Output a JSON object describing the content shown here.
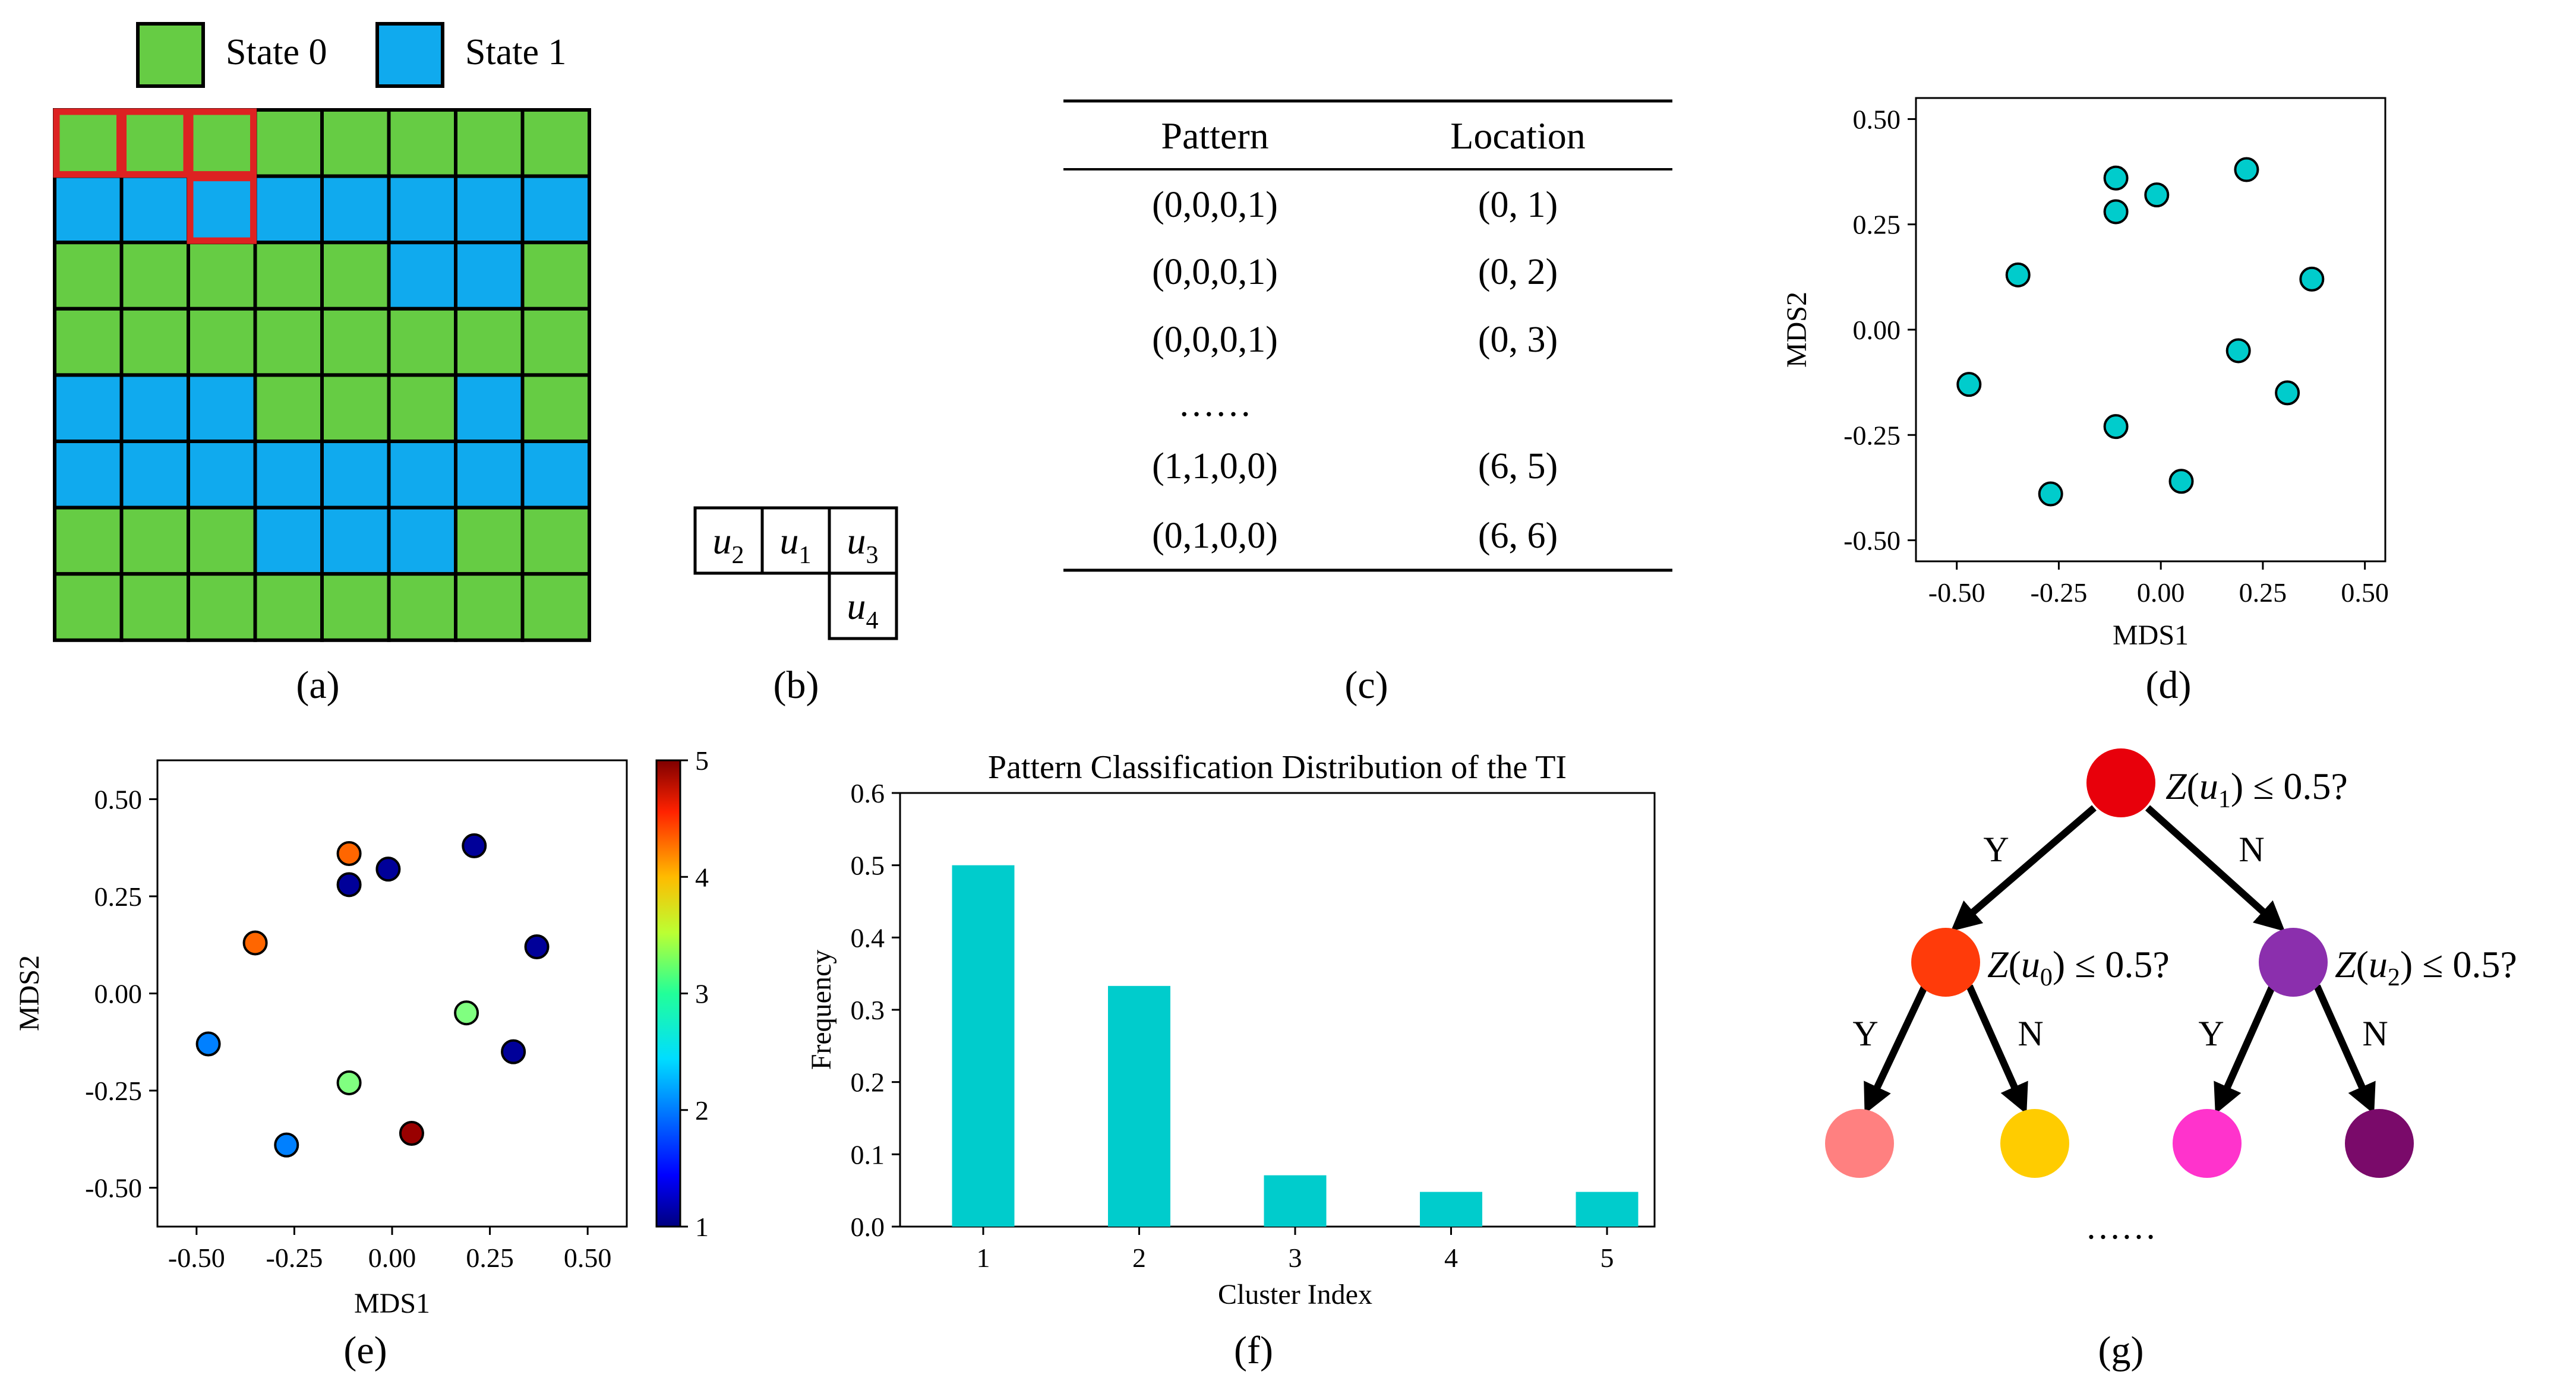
{
  "colors": {
    "state0": "#66CC44",
    "state1": "#10AAEE",
    "highlight": "#DD2222",
    "teal": "#00CCCC"
  },
  "panel_a": {
    "label": "(a)",
    "legend": [
      "State 0",
      "State 1"
    ],
    "grid": [
      [
        0,
        0,
        0,
        0,
        0,
        0,
        0,
        0
      ],
      [
        1,
        1,
        1,
        1,
        1,
        1,
        1,
        1
      ],
      [
        0,
        0,
        0,
        0,
        0,
        1,
        1,
        0
      ],
      [
        0,
        0,
        0,
        0,
        0,
        0,
        0,
        0
      ],
      [
        1,
        1,
        1,
        0,
        0,
        0,
        1,
        0
      ],
      [
        1,
        1,
        1,
        1,
        1,
        1,
        1,
        1
      ],
      [
        0,
        0,
        0,
        1,
        1,
        1,
        0,
        0
      ],
      [
        0,
        0,
        0,
        0,
        0,
        0,
        0,
        0
      ]
    ],
    "highlighted_cells": [
      [
        0,
        0
      ],
      [
        0,
        1
      ],
      [
        0,
        2
      ],
      [
        1,
        2
      ]
    ]
  },
  "panel_b": {
    "label": "(b)",
    "template": [
      "u2",
      "u1",
      "u3",
      "u4"
    ]
  },
  "panel_c": {
    "label": "(c)",
    "headers": [
      "Pattern",
      "Location"
    ],
    "rows": [
      [
        "(0,0,0,1)",
        "(0, 1)"
      ],
      [
        "(0,0,0,1)",
        "(0, 2)"
      ],
      [
        "(0,0,0,1)",
        "(0, 3)"
      ],
      [
        "……",
        ""
      ],
      [
        "(1,1,0,0)",
        "(6, 5)"
      ],
      [
        "(0,1,0,0)",
        "(6, 6)"
      ]
    ]
  },
  "chart_data": [
    {
      "panel": "(d)",
      "type": "scatter",
      "xlabel": "MDS1",
      "ylabel": "MDS2",
      "xlim": [
        -0.6,
        0.55
      ],
      "ylim": [
        -0.55,
        0.55
      ],
      "xticks": [
        "-0.50",
        "-0.25",
        "0.00",
        "0.25",
        "0.50"
      ],
      "yticks": [
        "0.50",
        "0.25",
        "0.00",
        "-0.25",
        "-0.50"
      ],
      "points": [
        {
          "x": -0.11,
          "y": 0.36
        },
        {
          "x": -0.11,
          "y": 0.28
        },
        {
          "x": -0.01,
          "y": 0.32
        },
        {
          "x": 0.21,
          "y": 0.38
        },
        {
          "x": -0.35,
          "y": 0.13
        },
        {
          "x": 0.37,
          "y": 0.12
        },
        {
          "x": 0.19,
          "y": -0.05
        },
        {
          "x": -0.47,
          "y": -0.13
        },
        {
          "x": 0.31,
          "y": -0.15
        },
        {
          "x": -0.11,
          "y": -0.23
        },
        {
          "x": 0.05,
          "y": -0.36
        },
        {
          "x": -0.27,
          "y": -0.39
        }
      ]
    },
    {
      "panel": "(e)",
      "type": "scatter",
      "xlabel": "MDS1",
      "ylabel": "MDS2",
      "xlim": [
        -0.6,
        0.6
      ],
      "ylim": [
        -0.6,
        0.6
      ],
      "xticks": [
        "-0.50",
        "-0.25",
        "0.00",
        "0.25",
        "0.50"
      ],
      "yticks": [
        "0.50",
        "0.25",
        "0.00",
        "-0.25",
        "-0.50"
      ],
      "colorbar": {
        "min": 1,
        "max": 5,
        "ticks": [
          "5",
          "4",
          "3",
          "2",
          "1"
        ]
      },
      "points": [
        {
          "x": -0.11,
          "y": 0.36,
          "c": 4.1
        },
        {
          "x": -0.11,
          "y": 0.28,
          "c": 1.1
        },
        {
          "x": -0.01,
          "y": 0.32,
          "c": 1.1
        },
        {
          "x": 0.21,
          "y": 0.38,
          "c": 1.1
        },
        {
          "x": -0.35,
          "y": 0.13,
          "c": 4.1
        },
        {
          "x": 0.37,
          "y": 0.12,
          "c": 1.1
        },
        {
          "x": 0.19,
          "y": -0.05,
          "c": 3.0
        },
        {
          "x": -0.47,
          "y": -0.13,
          "c": 2.0
        },
        {
          "x": 0.31,
          "y": -0.15,
          "c": 1.1
        },
        {
          "x": -0.11,
          "y": -0.23,
          "c": 3.0
        },
        {
          "x": 0.05,
          "y": -0.36,
          "c": 4.9
        },
        {
          "x": -0.27,
          "y": -0.39,
          "c": 2.0
        }
      ]
    },
    {
      "panel": "(f)",
      "type": "bar",
      "title": "Pattern Classification Distribution of the TI",
      "xlabel": "Cluster Index",
      "ylabel": "Frequency",
      "categories": [
        "1",
        "2",
        "3",
        "4",
        "5"
      ],
      "values": [
        0.5,
        0.333,
        0.071,
        0.048,
        0.048
      ],
      "ylim": [
        0,
        0.6
      ],
      "yticks": [
        "0.0",
        "0.1",
        "0.2",
        "0.3",
        "0.4",
        "0.5",
        "0.6"
      ]
    }
  ],
  "panel_d": {
    "label": "(d)"
  },
  "panel_e": {
    "label": "(e)"
  },
  "panel_f": {
    "label": "(f)"
  },
  "panel_g": {
    "label": "(g)",
    "root_question": "Z(u1) ≤ 0.5?",
    "left_question": "Z(u0) ≤ 0.5?",
    "right_question": "Z(u2) ≤ 0.5?",
    "yes": "Y",
    "no": "N",
    "ellipsis": "……",
    "node_colors": {
      "root": "#E8000B",
      "left": "#FF3B0A",
      "right": "#8B2FAD",
      "ll": "#FF8080",
      "lr": "#FFCC00",
      "rl": "#FF33CC",
      "rr": "#7A0A6A"
    }
  }
}
